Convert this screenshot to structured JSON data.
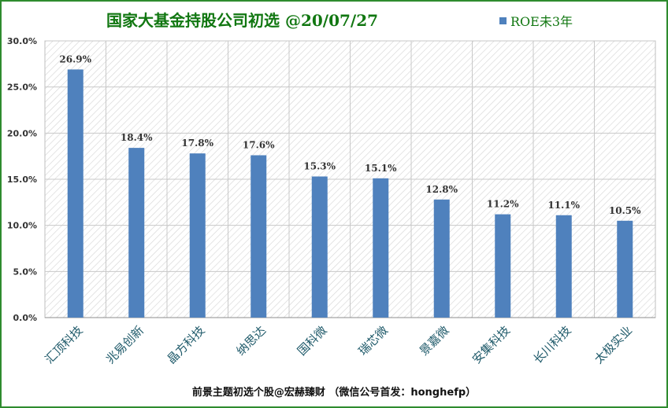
{
  "title": "国家大基金持股公司初选 @20/07/27",
  "footer": "前景主题初选个股@宏赫臻财 （微信公号首发：honghefp）",
  "colors": {
    "bar": "#4f81bd",
    "title": "#117711",
    "border": "#2e8b2e"
  },
  "chart_data": {
    "type": "bar",
    "categories": [
      "汇顶科技",
      "兆易创新",
      "晶方科技",
      "纳思达",
      "国科微",
      "瑞芯微",
      "景嘉微",
      "安集科技",
      "长川科技",
      "太极实业"
    ],
    "series": [
      {
        "name": "ROE未3年",
        "values": [
          26.9,
          18.4,
          17.8,
          17.6,
          15.3,
          15.1,
          12.8,
          11.2,
          11.1,
          10.5
        ],
        "labels": [
          "26.9%",
          "18.4%",
          "17.8%",
          "17.6%",
          "15.3%",
          "15.1%",
          "12.8%",
          "11.2%",
          "11.1%",
          "10.5%"
        ]
      }
    ],
    "y_ticks": [
      "0.0%",
      "5.0%",
      "10.0%",
      "15.0%",
      "20.0%",
      "25.0%",
      "30.0%"
    ],
    "ylim": [
      0,
      30
    ],
    "legend": "top-right",
    "grid": true
  }
}
